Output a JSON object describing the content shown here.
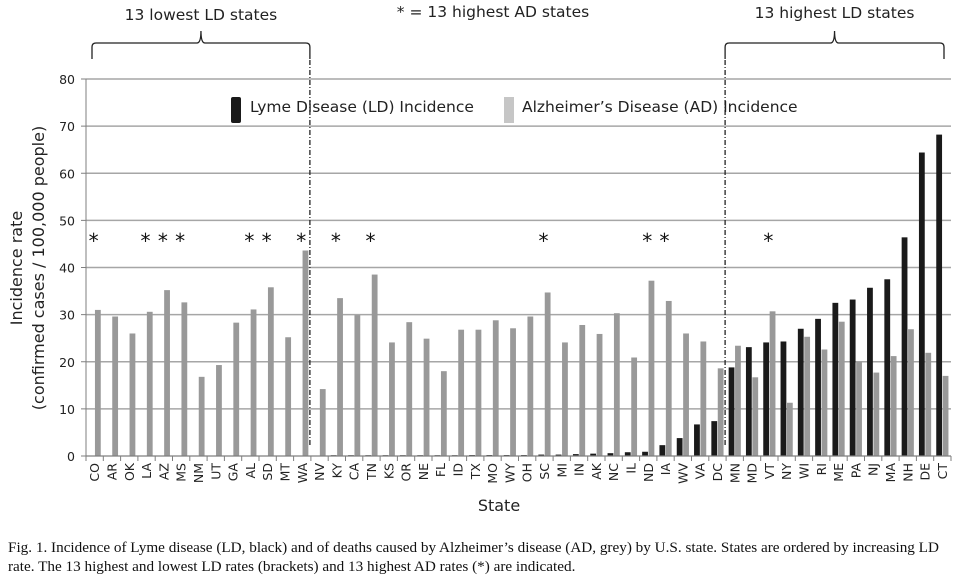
{
  "chart_data": {
    "type": "bar",
    "title": "",
    "xlabel": "State",
    "ylabel": "Incidence rate (confirmed cases / 100,000 people)",
    "ylabel_lines": [
      "Incidence rate",
      "(confirmed cases / 100,000 people)"
    ],
    "ylim": [
      0,
      80
    ],
    "yticks": [
      0,
      10,
      20,
      30,
      40,
      50,
      60,
      70,
      80
    ],
    "grid": true,
    "legend_position": "top-center",
    "categories": [
      "CO",
      "AR",
      "OK",
      "LA",
      "AZ",
      "MS",
      "NM",
      "UT",
      "GA",
      "AL",
      "SD",
      "MT",
      "WA",
      "NV",
      "KY",
      "CA",
      "TN",
      "KS",
      "OR",
      "NE",
      "FL",
      "ID",
      "TX",
      "MO",
      "WY",
      "OH",
      "SC",
      "MI",
      "IN",
      "AK",
      "NC",
      "IL",
      "ND",
      "IA",
      "WV",
      "VA",
      "DC",
      "MN",
      "MD",
      "VT",
      "NY",
      "WI",
      "RI",
      "ME",
      "PA",
      "NJ",
      "MA",
      "NH",
      "DE",
      "CT"
    ],
    "series": [
      {
        "name": "Lyme Disease (LD) Incidence",
        "color": "#1a1a1a",
        "values": [
          0,
          0,
          0,
          0,
          0,
          0,
          0,
          0,
          0,
          0,
          0,
          0,
          0,
          0,
          0.1,
          0.1,
          0.1,
          0.1,
          0.1,
          0.1,
          0.1,
          0.1,
          0.2,
          0.2,
          0.2,
          0.2,
          0.3,
          0.3,
          0.4,
          0.5,
          0.6,
          0.8,
          0.9,
          2.3,
          3.8,
          6.7,
          7.4,
          18.8,
          23.1,
          24.1,
          24.3,
          27.0,
          29.1,
          32.5,
          33.2,
          35.7,
          37.5,
          46.4,
          64.4,
          68.2
        ]
      },
      {
        "name": "Alzheimer’s Disease (AD) Incidence",
        "color": "#999999",
        "values": [
          31.0,
          29.6,
          26.0,
          30.6,
          35.2,
          32.6,
          16.8,
          19.3,
          28.3,
          31.1,
          35.8,
          25.2,
          43.6,
          14.2,
          33.5,
          29.9,
          38.5,
          24.1,
          28.4,
          24.9,
          18.0,
          26.8,
          26.8,
          28.8,
          27.1,
          29.6,
          34.7,
          24.1,
          27.8,
          25.9,
          30.3,
          20.9,
          37.2,
          32.9,
          26.0,
          24.3,
          18.6,
          23.4,
          16.7,
          30.7,
          11.3,
          25.3,
          22.6,
          28.5,
          20.0,
          17.7,
          21.2,
          26.9,
          21.9,
          17.0
        ]
      }
    ],
    "annotations": {
      "asterisk_states": [
        "CO",
        "LA",
        "AZ",
        "MS",
        "AL",
        "SD",
        "WA",
        "KY",
        "TN",
        "SC",
        "ND",
        "IA",
        "VT"
      ],
      "asterisk_value": 46,
      "asterisk_note": "* = 13 highest AD states",
      "brackets": [
        {
          "label": "13 lowest LD states",
          "from": "CO",
          "to": "WA"
        },
        {
          "label": "13 highest LD states",
          "from": "MN",
          "to": "CT"
        }
      ],
      "divider_after": [
        "WA",
        "DC"
      ]
    }
  },
  "caption": "Fig. 1. Incidence of Lyme disease (LD, black) and of deaths caused by Alzheimer’s disease (AD, grey) by U.S. state. States are ordered by increasing LD rate. The 13 highest and lowest LD rates (brackets) and 13 highest AD rates (*) are indicated.",
  "colors": {
    "gridline": "#a6a6a6",
    "axis": "#7f7f7f",
    "legend_ad": "#c6c6c6"
  }
}
